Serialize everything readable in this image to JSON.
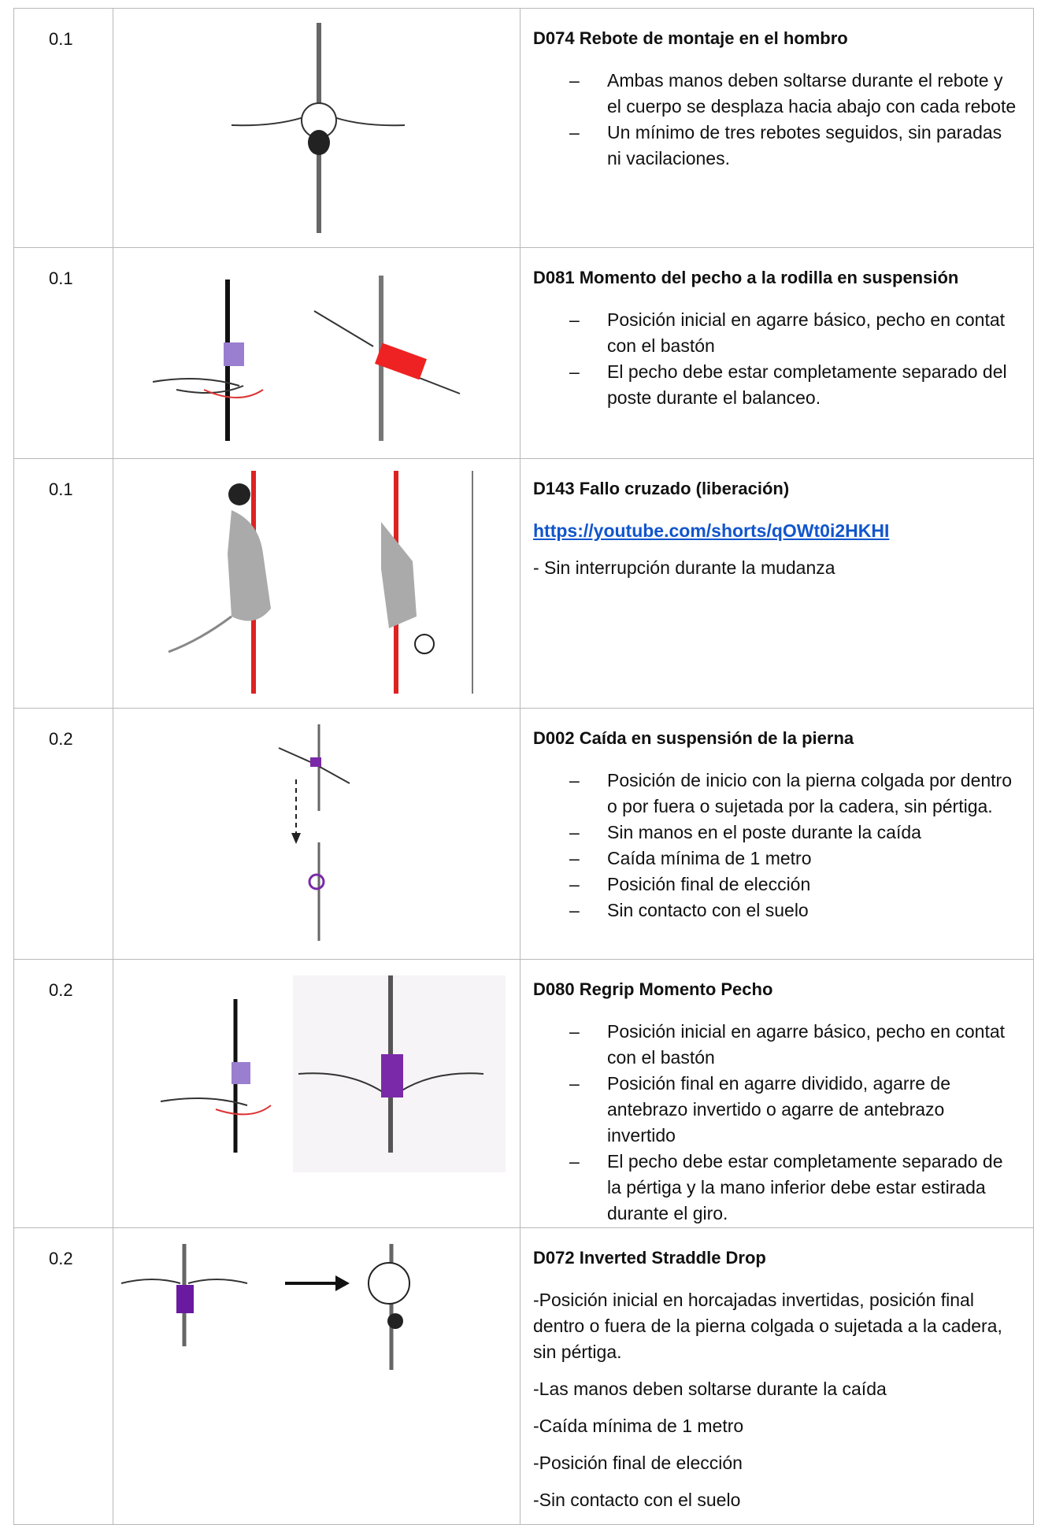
{
  "table": {
    "rows": [
      {
        "value": "0.1",
        "title": "D074 Rebote de montaje en el hombro",
        "bullets": [
          "Ambas manos deben soltarse durante el rebote y el cuerpo se desplaza hacia abajo con cada rebote",
          "Un mínimo de tres rebotes seguidos, sin paradas ni vacilaciones."
        ]
      },
      {
        "value": "0.1",
        "title": "D081 Momento del pecho a la rodilla en suspensión",
        "bullets": [
          "Posición inicial en agarre básico, pecho en contat con el bastón",
          "El pecho debe estar completamente separado del poste durante el balanceo."
        ]
      },
      {
        "value": "0.1",
        "title": "D143 Fallo cruzado (liberación)",
        "link": "https://youtube.com/shorts/qOWt0i2HKHI",
        "paragraphs": [
          "- Sin interrupción durante la mudanza"
        ]
      },
      {
        "value": "0.2",
        "title": "D002 Caída en suspensión de la pierna",
        "bullets": [
          "Posición de inicio con la pierna colgada por dentro o por fuera o sujetada por la cadera, sin pértiga.",
          "Sin manos en el poste durante la caída",
          "Caída mínima de 1 metro",
          "Posición final de elección",
          "Sin contacto con el suelo"
        ]
      },
      {
        "value": "0.2",
        "title": "D080 Regrip Momento Pecho",
        "bullets": [
          "Posición inicial en agarre básico, pecho en contat con el bastón",
          "Posición final en agarre dividido, agarre de antebrazo invertido o agarre de antebrazo invertido",
          "El pecho debe estar completamente separado de la pértiga y la mano inferior debe estar estirada durante el giro."
        ]
      },
      {
        "value": "0.2",
        "title": "D072 Inverted Straddle Drop",
        "paragraphs": [
          "-Posición inicial en horcajadas invertidas, posición final dentro o fuera de la pierna colgada o sujetada a la cadera, sin pértiga.",
          "-Las manos deben soltarse durante la caída",
          "-Caída mínima de 1 metro",
          "-Posición final de elección",
          "-Sin contacto con el suelo"
        ]
      }
    ]
  }
}
